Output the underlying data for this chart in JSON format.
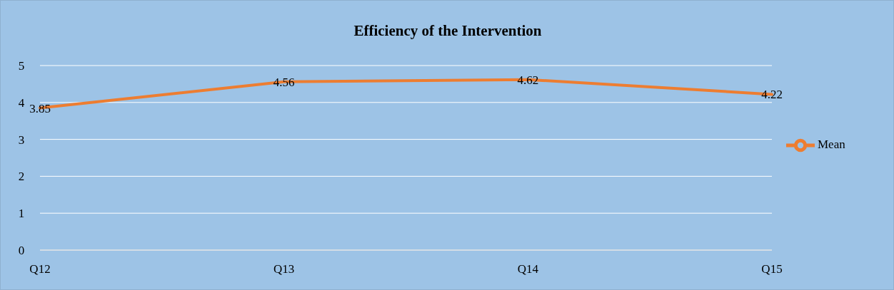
{
  "chart_data": {
    "type": "line",
    "title": "Efficiency of the Intervention",
    "categories": [
      "Q12",
      "Q13",
      "Q14",
      "Q15"
    ],
    "series": [
      {
        "name": "Mean",
        "color": "#ed7d31",
        "values": [
          3.85,
          4.56,
          4.62,
          4.22
        ]
      }
    ],
    "ylim": [
      0,
      5
    ],
    "yticks": [
      0,
      1,
      2,
      3,
      4,
      5
    ],
    "grid": "y",
    "legend": "right",
    "data_labels": true,
    "marker": "none",
    "line_style": "solid"
  }
}
